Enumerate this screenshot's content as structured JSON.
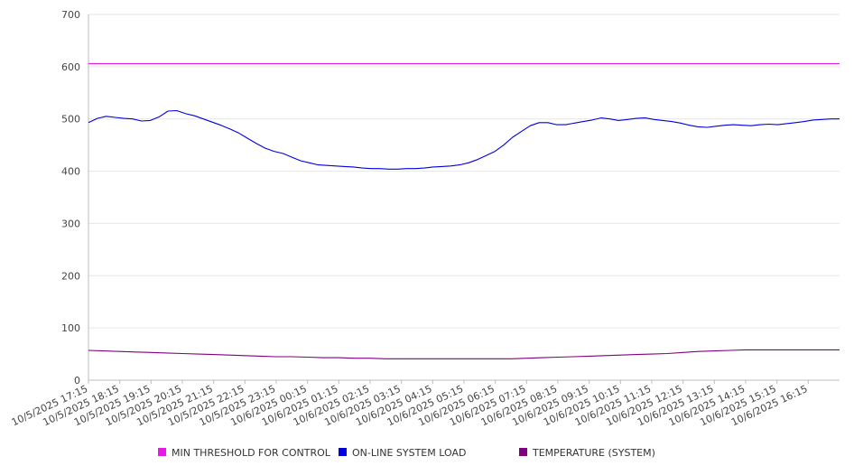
{
  "chart_data": {
    "type": "line",
    "title": "",
    "xlabel": "",
    "ylabel": "",
    "ylim": [
      0,
      700
    ],
    "yticks": [
      0,
      100,
      200,
      300,
      400,
      500,
      600,
      700
    ],
    "grid": true,
    "legend_position": "bottom",
    "x_tick_labels": [
      "10/5/2025 17:15",
      "10/5/2025 18:15",
      "10/5/2025 19:15",
      "10/5/2025 20:15",
      "10/5/2025 21:15",
      "10/5/2025 22:15",
      "10/5/2025 23:15",
      "10/6/2025 00:15",
      "10/6/2025 01:15",
      "10/6/2025 02:15",
      "10/6/2025 03:15",
      "10/6/2025 04:15",
      "10/6/2025 05:15",
      "10/6/2025 06:15",
      "10/6/2025 07:15",
      "10/6/2025 08:15",
      "10/6/2025 09:15",
      "10/6/2025 10:15",
      "10/6/2025 11:15",
      "10/6/2025 12:15",
      "10/6/2025 13:15",
      "10/6/2025 14:15",
      "10/6/2025 15:15",
      "10/6/2025 16:15"
    ],
    "series": [
      {
        "name": "MIN THRESHOLD FOR CONTROL",
        "color": "#e619e6",
        "values": [
          606,
          606,
          606,
          606,
          606,
          606,
          606,
          606,
          606,
          606,
          606,
          606,
          606,
          606,
          606,
          606,
          606,
          606,
          606,
          606,
          606,
          606,
          606,
          606,
          606
        ]
      },
      {
        "name": "ON-LINE SYSTEM LOAD",
        "color": "#0000e0",
        "values": [
          493,
          501,
          505,
          503,
          501,
          500,
          496,
          497,
          504,
          515,
          516,
          510,
          506,
          500,
          494,
          488,
          481,
          473,
          463,
          453,
          444,
          438,
          434,
          427,
          420,
          416,
          412,
          411,
          410,
          409,
          408,
          406,
          405,
          405,
          404,
          404,
          405,
          405,
          406,
          408,
          409,
          410,
          412,
          416,
          422,
          430,
          438,
          450,
          465,
          476,
          487,
          493,
          493,
          489,
          489,
          492,
          495,
          498,
          502,
          500,
          497,
          499,
          501,
          502,
          499,
          497,
          495,
          492,
          488,
          485,
          484,
          486,
          488,
          489,
          488,
          487,
          489,
          490,
          489,
          491,
          493,
          495,
          498,
          499,
          500,
          500
        ]
      },
      {
        "name": "TEMPERATURE (SYSTEM)",
        "color": "#800080",
        "values": [
          57,
          56,
          55,
          54,
          53,
          52,
          51,
          50,
          49,
          48,
          47,
          46,
          45,
          45,
          44,
          43,
          43,
          42,
          42,
          41,
          41,
          41,
          41,
          41,
          41,
          41,
          41,
          41,
          42,
          43,
          44,
          45,
          46,
          47,
          48,
          49,
          50,
          51,
          53,
          55,
          56,
          57,
          58,
          58,
          58,
          58,
          58,
          58,
          58
        ]
      }
    ]
  }
}
